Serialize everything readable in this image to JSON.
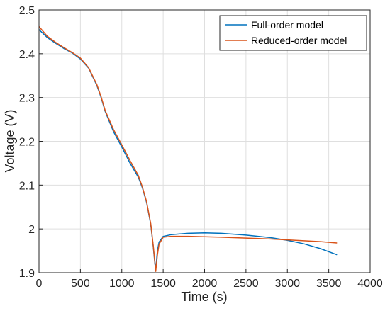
{
  "chart_data": {
    "type": "line",
    "xlabel": "Time (s)",
    "ylabel": "Voltage (V)",
    "xlim": [
      0,
      4000
    ],
    "ylim": [
      1.9,
      2.5
    ],
    "xticks": [
      0,
      500,
      1000,
      1500,
      2000,
      2500,
      3000,
      3500,
      4000
    ],
    "yticks": [
      1.9,
      2,
      2.1,
      2.2,
      2.3,
      2.4,
      2.5
    ],
    "xtick_labels": [
      "0",
      "500",
      "1000",
      "1500",
      "2000",
      "2500",
      "3000",
      "3500",
      "4000"
    ],
    "ytick_labels": [
      "1.9",
      "2",
      "2.1",
      "2.2",
      "2.3",
      "2.4",
      "2.5"
    ],
    "grid": true,
    "legend_position": "top-right",
    "series": [
      {
        "name": "Full-order model",
        "color": "#0072BD",
        "x": [
          0,
          100,
          200,
          300,
          400,
          500,
          600,
          700,
          750,
          800,
          900,
          1000,
          1100,
          1200,
          1250,
          1300,
          1350,
          1380,
          1400,
          1410,
          1430,
          1450,
          1500,
          1600,
          1800,
          2000,
          2200,
          2500,
          2800,
          3000,
          3200,
          3400,
          3600
        ],
        "y": [
          2.455,
          2.437,
          2.424,
          2.412,
          2.402,
          2.388,
          2.367,
          2.327,
          2.3,
          2.268,
          2.222,
          2.187,
          2.15,
          2.118,
          2.093,
          2.06,
          2.01,
          1.96,
          1.92,
          1.908,
          1.95,
          1.97,
          1.983,
          1.987,
          1.99,
          1.991,
          1.99,
          1.986,
          1.98,
          1.974,
          1.966,
          1.955,
          1.941
        ]
      },
      {
        "name": "Reduced-order model",
        "color": "#D95319",
        "x": [
          0,
          100,
          200,
          300,
          400,
          500,
          600,
          700,
          750,
          800,
          900,
          1000,
          1100,
          1200,
          1250,
          1300,
          1350,
          1380,
          1400,
          1410,
          1430,
          1450,
          1500,
          1600,
          1800,
          2000,
          2200,
          2500,
          2800,
          3000,
          3200,
          3400,
          3600
        ],
        "y": [
          2.462,
          2.44,
          2.426,
          2.414,
          2.403,
          2.39,
          2.368,
          2.329,
          2.302,
          2.27,
          2.227,
          2.192,
          2.156,
          2.122,
          2.095,
          2.062,
          2.012,
          1.962,
          1.923,
          1.903,
          1.94,
          1.965,
          1.981,
          1.983,
          1.983,
          1.982,
          1.981,
          1.979,
          1.977,
          1.975,
          1.973,
          1.971,
          1.968
        ]
      }
    ]
  }
}
